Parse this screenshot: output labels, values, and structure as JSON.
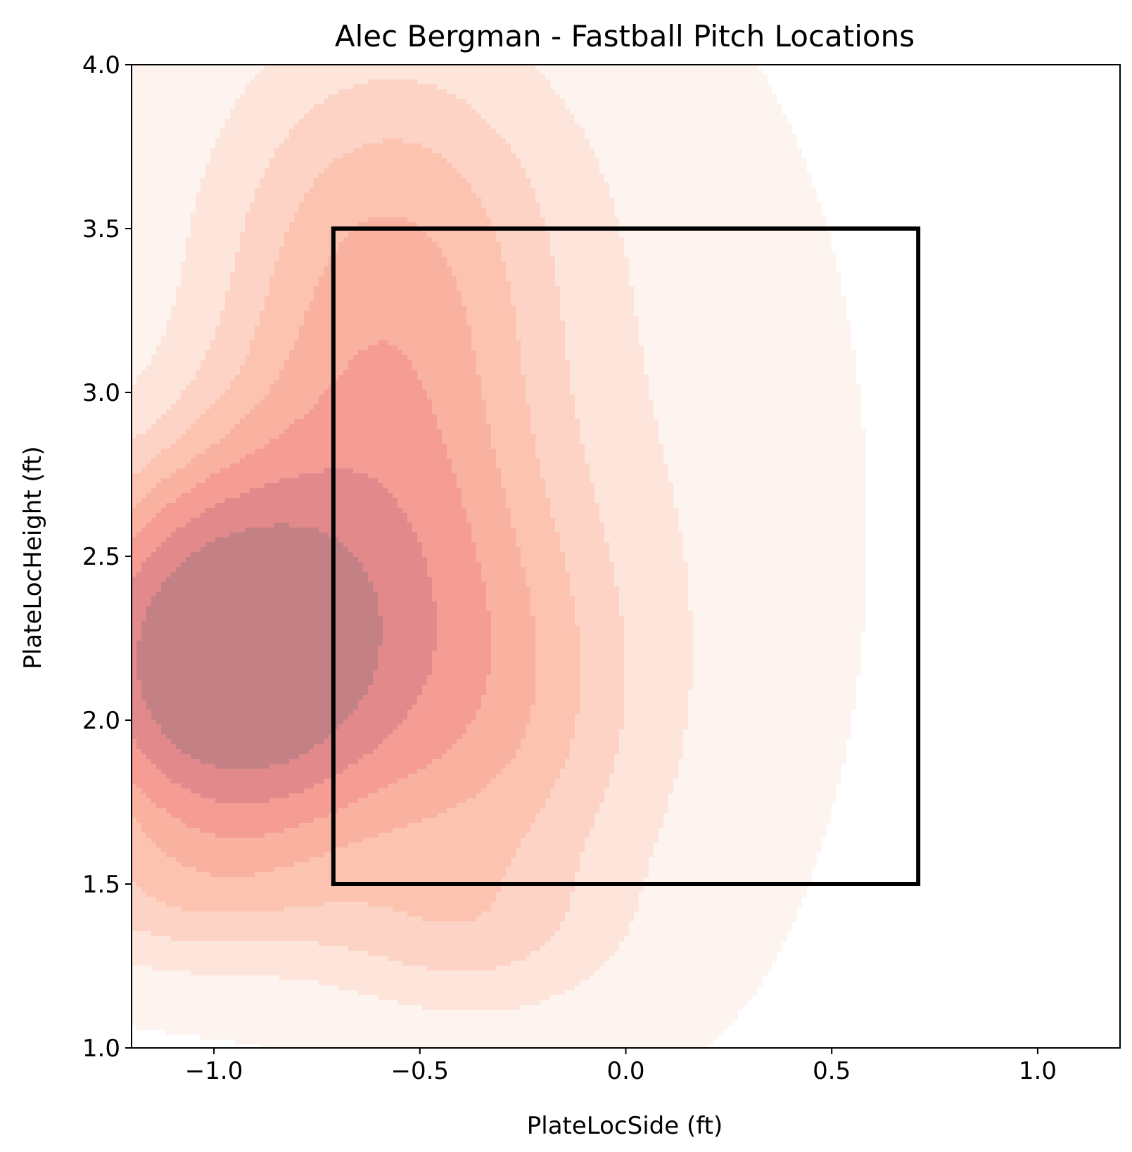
{
  "chart_data": {
    "type": "heatmap",
    "subtype": "kde-contour",
    "title": "Alec Bergman - Fastball Pitch Locations",
    "xlabel": "PlateLocSide (ft)",
    "ylabel": "PlateLocHeight (ft)",
    "xlim": [
      -1.2,
      1.2
    ],
    "ylim": [
      1.0,
      4.0
    ],
    "xticks": [
      -1.0,
      -0.5,
      0.0,
      0.5,
      1.0
    ],
    "xtick_labels": [
      "−1.0",
      "−0.5",
      "0.0",
      "0.5",
      "1.0"
    ],
    "yticks": [
      1.0,
      1.5,
      2.0,
      2.5,
      3.0,
      3.5,
      4.0
    ],
    "ytick_labels": [
      "1.0",
      "1.5",
      "2.0",
      "2.5",
      "3.0",
      "3.5",
      "4.0"
    ],
    "grid": false,
    "colormap": "Reds",
    "density_peak": {
      "x": -0.97,
      "y": 2.18
    },
    "kde_clusters": [
      {
        "x": -0.97,
        "y": 2.18,
        "sx": 0.26,
        "sy": 0.37,
        "w": 1.0
      },
      {
        "x": -0.6,
        "y": 2.85,
        "sx": 0.27,
        "sy": 0.6,
        "w": 0.38
      },
      {
        "x": -0.55,
        "y": 3.6,
        "sx": 0.32,
        "sy": 0.42,
        "w": 0.14
      },
      {
        "x": -0.35,
        "y": 2.0,
        "sx": 0.26,
        "sy": 0.48,
        "w": 0.26
      },
      {
        "x": -0.4,
        "y": 1.35,
        "sx": 0.24,
        "sy": 0.16,
        "w": 0.1
      },
      {
        "x": -1.1,
        "y": 1.45,
        "sx": 0.3,
        "sy": 0.16,
        "w": 0.13
      },
      {
        "x": 0.05,
        "y": 2.6,
        "sx": 0.32,
        "sy": 0.9,
        "w": 0.06
      }
    ],
    "contour_levels": [
      0.015,
      0.09,
      0.17,
      0.25,
      0.34,
      0.44,
      0.57,
      0.73
    ],
    "level_colors": [
      "#fdf3ef",
      "#fde5dc",
      "#fcd3c4",
      "#fbc3b0",
      "#f9b2a0",
      "#f59c94",
      "#e2898c",
      "#c48185"
    ],
    "fill_x_max": 0.63,
    "strike_zone": {
      "x": [
        -0.71,
        0.71
      ],
      "y": [
        1.5,
        3.5
      ],
      "color": "#000000"
    }
  }
}
